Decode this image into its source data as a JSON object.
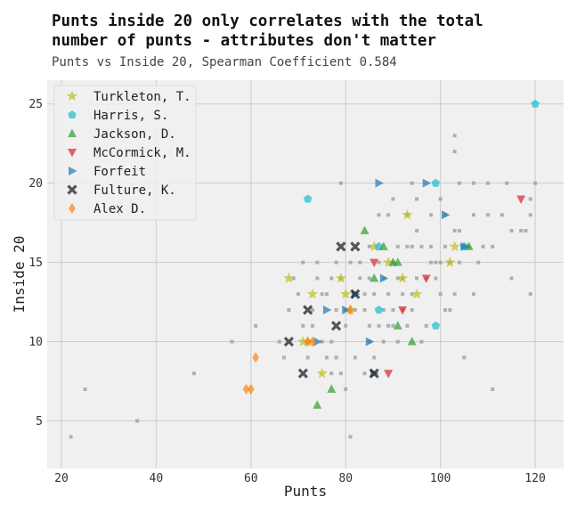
{
  "title_line1": "Punts inside 20 only correlates with the total",
  "title_line2": "number of punts - attributes don't matter",
  "subtitle": "Punts vs Inside 20, Spearman Coefficient 0.584",
  "chart_data": {
    "type": "scatter",
    "xlabel": "Punts",
    "ylabel": "Inside 20",
    "xlim": [
      17,
      126
    ],
    "ylim": [
      2,
      26.5
    ],
    "xticks": [
      20,
      40,
      60,
      80,
      100,
      120
    ],
    "yticks": [
      5,
      10,
      15,
      20,
      25
    ],
    "grid": true,
    "legend": "top-left",
    "background_points": {
      "color": "#999999",
      "points": [
        [
          22,
          4
        ],
        [
          25,
          7
        ],
        [
          36,
          5
        ],
        [
          48,
          8
        ],
        [
          56,
          10
        ],
        [
          61,
          11
        ],
        [
          66,
          10
        ],
        [
          67,
          9
        ],
        [
          68,
          12
        ],
        [
          69,
          14
        ],
        [
          70,
          13
        ],
        [
          71,
          15
        ],
        [
          71,
          11
        ],
        [
          72,
          10
        ],
        [
          72,
          9
        ],
        [
          73,
          12
        ],
        [
          73,
          11
        ],
        [
          74,
          15
        ],
        [
          74,
          14
        ],
        [
          75,
          13
        ],
        [
          75,
          10
        ],
        [
          76,
          13
        ],
        [
          76,
          9
        ],
        [
          77,
          14
        ],
        [
          77,
          10
        ],
        [
          77,
          8
        ],
        [
          78,
          15
        ],
        [
          78,
          12
        ],
        [
          78,
          9
        ],
        [
          79,
          20
        ],
        [
          79,
          14
        ],
        [
          79,
          8
        ],
        [
          80,
          12
        ],
        [
          80,
          11
        ],
        [
          80,
          7
        ],
        [
          81,
          15
        ],
        [
          81,
          4
        ],
        [
          82,
          12
        ],
        [
          82,
          9
        ],
        [
          83,
          15
        ],
        [
          83,
          14
        ],
        [
          84,
          13
        ],
        [
          84,
          12
        ],
        [
          84,
          8
        ],
        [
          85,
          16
        ],
        [
          85,
          14
        ],
        [
          85,
          11
        ],
        [
          85,
          10
        ],
        [
          86,
          13
        ],
        [
          86,
          9
        ],
        [
          87,
          18
        ],
        [
          87,
          15
        ],
        [
          87,
          11
        ],
        [
          88,
          14
        ],
        [
          88,
          12
        ],
        [
          88,
          10
        ],
        [
          89,
          18
        ],
        [
          89,
          13
        ],
        [
          89,
          11
        ],
        [
          90,
          19
        ],
        [
          90,
          15
        ],
        [
          90,
          12
        ],
        [
          90,
          11
        ],
        [
          91,
          16
        ],
        [
          91,
          14
        ],
        [
          91,
          10
        ],
        [
          92,
          14
        ],
        [
          92,
          13
        ],
        [
          92,
          12
        ],
        [
          93,
          18
        ],
        [
          93,
          16
        ],
        [
          93,
          11
        ],
        [
          94,
          20
        ],
        [
          94,
          16
        ],
        [
          94,
          13
        ],
        [
          94,
          12
        ],
        [
          95,
          19
        ],
        [
          95,
          17
        ],
        [
          95,
          14
        ],
        [
          96,
          16
        ],
        [
          96,
          10
        ],
        [
          97,
          14
        ],
        [
          97,
          11
        ],
        [
          98,
          18
        ],
        [
          98,
          16
        ],
        [
          98,
          15
        ],
        [
          99,
          15
        ],
        [
          99,
          14
        ],
        [
          100,
          19
        ],
        [
          100,
          15
        ],
        [
          100,
          13
        ],
        [
          101,
          18
        ],
        [
          101,
          16
        ],
        [
          101,
          12
        ],
        [
          102,
          15
        ],
        [
          102,
          12
        ],
        [
          103,
          23
        ],
        [
          103,
          22
        ],
        [
          103,
          17
        ],
        [
          103,
          13
        ],
        [
          104,
          20
        ],
        [
          104,
          17
        ],
        [
          104,
          15
        ],
        [
          105,
          9
        ],
        [
          105,
          16
        ],
        [
          106,
          16
        ],
        [
          107,
          20
        ],
        [
          107,
          18
        ],
        [
          107,
          13
        ],
        [
          108,
          15
        ],
        [
          109,
          16
        ],
        [
          110,
          20
        ],
        [
          110,
          18
        ],
        [
          111,
          16
        ],
        [
          111,
          7
        ],
        [
          113,
          18
        ],
        [
          114,
          20
        ],
        [
          115,
          17
        ],
        [
          115,
          14
        ],
        [
          117,
          17
        ],
        [
          118,
          17
        ],
        [
          119,
          18
        ],
        [
          119,
          13
        ],
        [
          120,
          20
        ],
        [
          119,
          19
        ]
      ]
    },
    "series": [
      {
        "name": "Turkleton, T.",
        "color": "#bcbd22",
        "marker": "star",
        "points": [
          [
            68,
            14
          ],
          [
            71,
            10
          ],
          [
            72,
            10
          ],
          [
            73,
            13
          ],
          [
            75,
            8
          ],
          [
            79,
            14
          ],
          [
            80,
            13
          ],
          [
            81,
            12
          ],
          [
            86,
            16
          ],
          [
            89,
            15
          ],
          [
            92,
            14
          ],
          [
            93,
            18
          ],
          [
            95,
            13
          ],
          [
            102,
            15
          ],
          [
            103,
            16
          ]
        ]
      },
      {
        "name": "Harris, S.",
        "color": "#17becf",
        "marker": "pentagon",
        "points": [
          [
            72,
            19
          ],
          [
            87,
            12
          ],
          [
            87,
            16
          ],
          [
            99,
            11
          ],
          [
            99,
            20
          ],
          [
            105,
            16
          ],
          [
            120,
            25
          ]
        ]
      },
      {
        "name": "Jackson, D.",
        "color": "#2ca02c",
        "marker": "triangle-up",
        "points": [
          [
            74,
            6
          ],
          [
            77,
            7
          ],
          [
            84,
            17
          ],
          [
            86,
            14
          ],
          [
            88,
            16
          ],
          [
            90,
            15
          ],
          [
            91,
            11
          ],
          [
            91,
            15
          ],
          [
            94,
            10
          ],
          [
            106,
            16
          ]
        ]
      },
      {
        "name": "McCormick, M.",
        "color": "#d62728",
        "marker": "triangle-down",
        "points": [
          [
            86,
            15
          ],
          [
            89,
            8
          ],
          [
            92,
            12
          ],
          [
            97,
            14
          ],
          [
            117,
            19
          ]
        ]
      },
      {
        "name": "Forfeit",
        "color": "#1f77b4",
        "marker": "triangle-right",
        "points": [
          [
            74,
            10
          ],
          [
            76,
            12
          ],
          [
            80,
            12
          ],
          [
            82,
            13
          ],
          [
            85,
            10
          ],
          [
            86,
            8
          ],
          [
            87,
            20
          ],
          [
            88,
            14
          ],
          [
            97,
            20
          ],
          [
            101,
            18
          ],
          [
            105,
            16
          ]
        ]
      },
      {
        "name": "Fulture, K.",
        "color": "#222222",
        "marker": "x",
        "points": [
          [
            68,
            10
          ],
          [
            71,
            8
          ],
          [
            72,
            12
          ],
          [
            78,
            11
          ],
          [
            79,
            16
          ],
          [
            82,
            13
          ],
          [
            82,
            16
          ],
          [
            86,
            8
          ]
        ]
      },
      {
        "name": "Alex D.",
        "color": "#ff7f0e",
        "marker": "diamond",
        "points": [
          [
            59,
            7
          ],
          [
            60,
            7
          ],
          [
            61,
            9
          ],
          [
            72,
            10
          ],
          [
            73,
            10
          ],
          [
            81,
            12
          ]
        ]
      }
    ]
  }
}
